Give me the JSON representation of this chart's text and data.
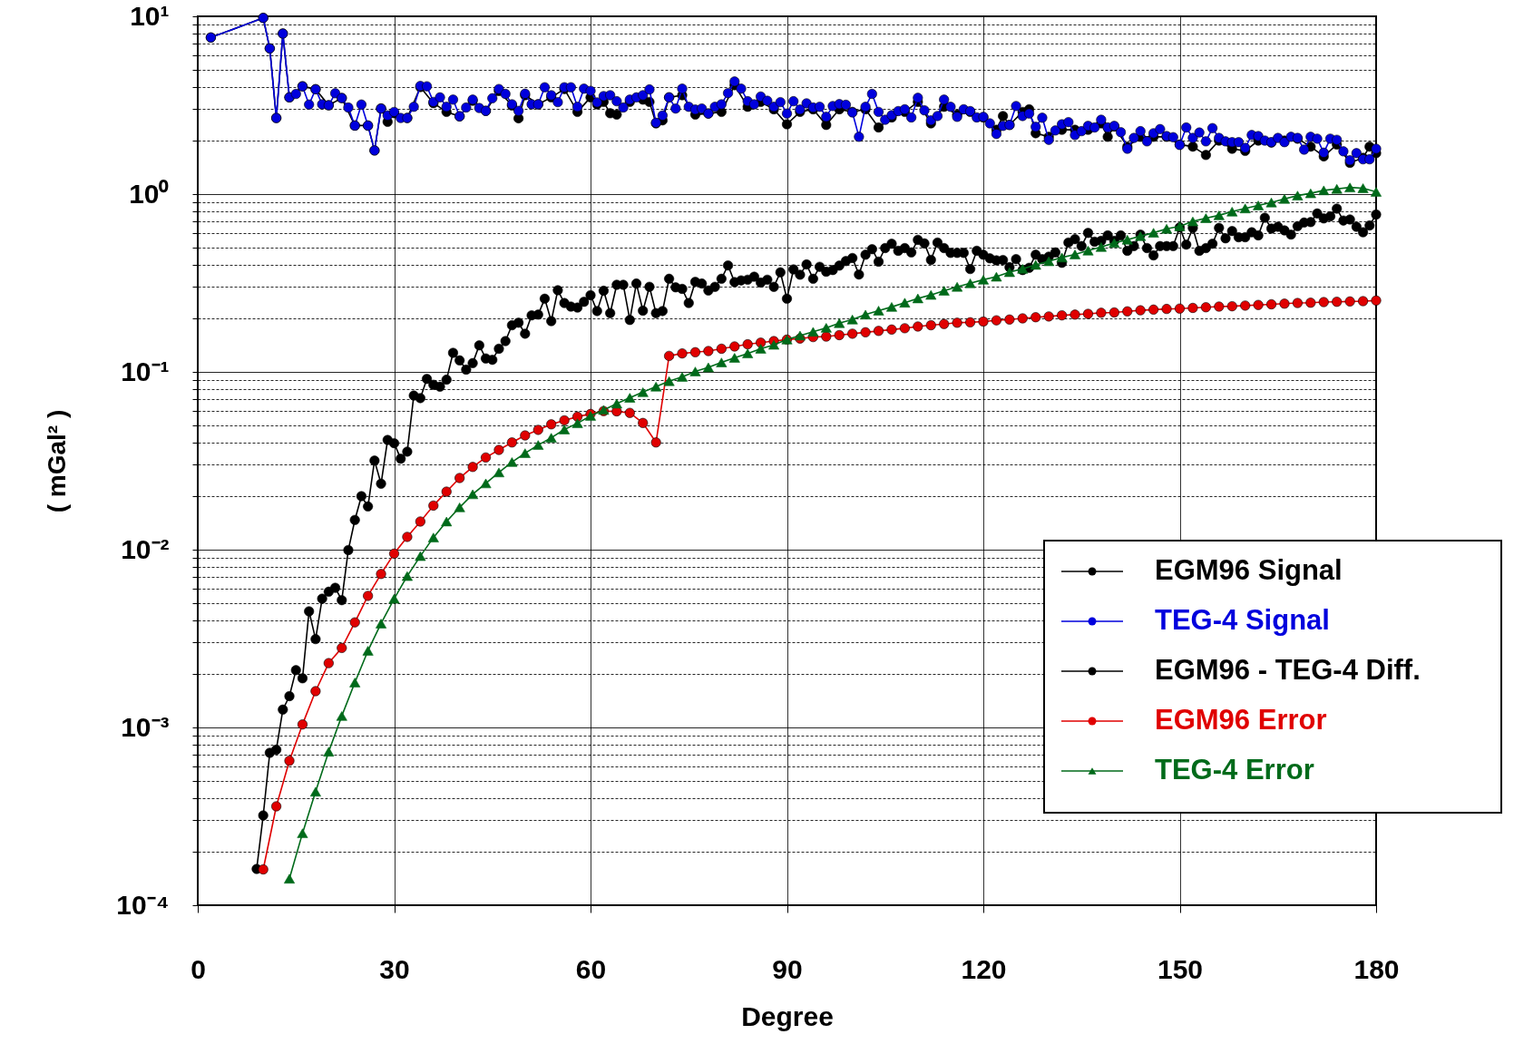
{
  "chart_data": {
    "type": "line",
    "xlabel": "Degree",
    "ylabel": "( mGal² )",
    "xlim": [
      0,
      180
    ],
    "xticks": [
      0,
      30,
      60,
      90,
      120,
      150,
      180
    ],
    "ylim": [
      0.0001,
      10
    ],
    "log": "y",
    "grid": true,
    "legend": "bottom right",
    "yticks": [
      {
        "value": 0.0001,
        "label": "10⁻⁴"
      },
      {
        "value": 0.0002,
        "label": null
      },
      {
        "value": 0.0003,
        "label": null
      },
      {
        "value": 0.0004,
        "label": null
      },
      {
        "value": 0.0005,
        "label": null
      },
      {
        "value": 0.0006,
        "label": null
      },
      {
        "value": 0.0007,
        "label": null
      },
      {
        "value": 0.0008,
        "label": null
      },
      {
        "value": 0.0009,
        "label": null
      },
      {
        "value": 0.001,
        "label": "10⁻³"
      },
      {
        "value": 0.002,
        "label": null
      },
      {
        "value": 0.003,
        "label": null
      },
      {
        "value": 0.004,
        "label": null
      },
      {
        "value": 0.005,
        "label": null
      },
      {
        "value": 0.006,
        "label": null
      },
      {
        "value": 0.007,
        "label": null
      },
      {
        "value": 0.008,
        "label": null
      },
      {
        "value": 0.009,
        "label": null
      },
      {
        "value": 0.01,
        "label": "10⁻²"
      },
      {
        "value": 0.02,
        "label": null
      },
      {
        "value": 0.03,
        "label": null
      },
      {
        "value": 0.04,
        "label": null
      },
      {
        "value": 0.05,
        "label": null
      },
      {
        "value": 0.06,
        "label": null
      },
      {
        "value": 0.07,
        "label": null
      },
      {
        "value": 0.08,
        "label": null
      },
      {
        "value": 0.09,
        "label": null
      },
      {
        "value": 0.1,
        "label": "10⁻¹"
      },
      {
        "value": 0.2,
        "label": null
      },
      {
        "value": 0.3,
        "label": null
      },
      {
        "value": 0.4,
        "label": null
      },
      {
        "value": 0.5,
        "label": null
      },
      {
        "value": 0.6,
        "label": null
      },
      {
        "value": 0.7,
        "label": null
      },
      {
        "value": 0.8,
        "label": null
      },
      {
        "value": 0.9,
        "label": null
      },
      {
        "value": 1,
        "label": "10⁰"
      },
      {
        "value": 2,
        "label": null
      },
      {
        "value": 3,
        "label": null
      },
      {
        "value": 4,
        "label": null
      },
      {
        "value": 5,
        "label": null
      },
      {
        "value": 6,
        "label": null
      },
      {
        "value": 7,
        "label": null
      },
      {
        "value": 8,
        "label": null
      },
      {
        "value": 9,
        "label": null
      },
      {
        "value": 10,
        "label": "10¹"
      }
    ],
    "series": [
      {
        "name": "EGM96 Signal",
        "color": "#000000",
        "marker": "circle",
        "x": [
          2,
          10,
          11,
          12,
          13,
          14,
          16,
          18,
          20,
          22,
          24,
          26,
          27,
          28,
          29,
          30,
          32,
          34,
          36,
          38,
          40,
          42,
          44,
          46,
          48,
          49,
          50,
          52,
          54,
          56,
          58,
          60,
          61,
          62,
          63,
          64,
          66,
          68,
          69,
          70,
          71,
          72,
          74,
          76,
          78,
          80,
          82,
          84,
          86,
          88,
          90,
          92,
          94,
          96,
          98,
          100,
          102,
          104,
          106,
          108,
          110,
          112,
          114,
          116,
          118,
          120,
          122,
          123,
          124,
          126,
          127,
          128,
          130,
          132,
          134,
          136,
          138,
          139,
          140,
          142,
          144,
          146,
          148,
          150,
          152,
          154,
          156,
          158,
          160,
          162,
          164,
          166,
          168,
          170,
          172,
          174,
          176,
          178,
          179,
          180
        ],
        "values": [
          7.6,
          9.8,
          6.6,
          2.68,
          8.0,
          3.5,
          4.04,
          3.89,
          3.16,
          3.47,
          2.43,
          2.43,
          1.76,
          3.03,
          2.55,
          2.85,
          2.68,
          4.0,
          3.25,
          2.9,
          2.74,
          3.35,
          2.94,
          3.8,
          3.15,
          2.67,
          3.6,
          3.2,
          3.5,
          3.9,
          2.9,
          3.5,
          3.2,
          3.3,
          2.85,
          2.8,
          3.3,
          3.4,
          3.3,
          2.5,
          2.6,
          3.5,
          3.6,
          2.8,
          2.84,
          2.9,
          4.1,
          3.1,
          3.3,
          3.0,
          2.47,
          2.9,
          3.0,
          2.45,
          3.0,
          2.9,
          3.0,
          2.37,
          2.7,
          2.9,
          3.3,
          2.5,
          3.1,
          2.8,
          2.9,
          2.7,
          2.3,
          2.75,
          2.45,
          2.9,
          3.0,
          2.2,
          2.1,
          2.3,
          2.3,
          2.3,
          2.5,
          2.1,
          2.4,
          1.85,
          2.1,
          2.1,
          2.1,
          1.9,
          1.85,
          1.66,
          2.0,
          1.8,
          1.75,
          2.0,
          1.95,
          2.0,
          2.05,
          1.85,
          1.63,
          1.9,
          1.5,
          1.6,
          1.85,
          1.7
        ]
      },
      {
        "name": "TEG-4 Signal",
        "color": "#0000dd",
        "marker": "circle",
        "x": [
          2,
          10,
          11,
          12,
          13,
          14,
          15,
          16,
          17,
          18,
          19,
          20,
          21,
          22,
          23,
          24,
          25,
          26,
          27,
          28,
          29,
          30,
          31,
          32,
          33,
          34,
          35,
          36,
          37,
          38,
          39,
          40,
          41,
          42,
          43,
          44,
          45,
          46,
          47,
          48,
          49,
          50,
          51,
          52,
          53,
          54,
          55,
          56,
          57,
          58,
          59,
          60,
          61,
          62,
          63,
          64,
          65,
          66,
          67,
          68,
          69,
          70,
          71,
          72,
          73,
          74,
          75,
          76,
          77,
          78,
          79,
          80,
          81,
          82,
          83,
          84,
          85,
          86,
          87,
          88,
          89,
          90,
          91,
          92,
          93,
          94,
          95,
          96,
          97,
          98,
          99,
          100,
          101,
          102,
          103,
          104,
          105,
          106,
          107,
          108,
          109,
          110,
          111,
          112,
          113,
          114,
          115,
          116,
          117,
          118,
          119,
          120,
          121,
          122,
          123,
          124,
          125,
          126,
          127,
          128,
          129,
          130,
          131,
          132,
          133,
          134,
          135,
          136,
          137,
          138,
          139,
          140,
          141,
          142,
          143,
          144,
          145,
          146,
          147,
          148,
          149,
          150,
          151,
          152,
          153,
          154,
          155,
          156,
          157,
          158,
          159,
          160,
          161,
          162,
          163,
          164,
          165,
          166,
          167,
          168,
          169,
          170,
          171,
          172,
          173,
          174,
          175,
          176,
          177,
          178,
          179,
          180
        ],
        "values": [
          7.6,
          9.8,
          6.6,
          2.68,
          8.0,
          3.5,
          3.66,
          4.04,
          3.19,
          3.89,
          3.2,
          3.16,
          3.69,
          3.47,
          3.07,
          2.43,
          3.19,
          2.43,
          1.76,
          3.03,
          2.77,
          2.9,
          2.68,
          2.68,
          3.1,
          4.06,
          4.04,
          3.3,
          3.5,
          3.1,
          3.4,
          2.74,
          3.07,
          3.4,
          3.05,
          2.94,
          3.46,
          3.9,
          3.66,
          3.2,
          2.94,
          3.67,
          3.2,
          3.2,
          3.99,
          3.6,
          3.29,
          3.99,
          3.99,
          3.1,
          3.92,
          3.81,
          3.28,
          3.56,
          3.6,
          3.33,
          3.07,
          3.4,
          3.5,
          3.6,
          3.88,
          2.52,
          2.77,
          3.5,
          3.03,
          3.92,
          3.1,
          2.99,
          3.03,
          2.84,
          3.1,
          3.2,
          3.7,
          4.3,
          3.92,
          3.33,
          3.2,
          3.54,
          3.35,
          3.1,
          3.29,
          2.84,
          3.33,
          2.99,
          3.24,
          3.07,
          3.1,
          2.72,
          3.13,
          3.21,
          3.18,
          2.88,
          2.1,
          3.1,
          3.66,
          2.9,
          2.62,
          2.78,
          2.93,
          3.0,
          2.7,
          3.48,
          2.96,
          2.6,
          2.75,
          3.4,
          3.1,
          2.72,
          3.0,
          2.93,
          2.7,
          2.72,
          2.5,
          2.18,
          2.42,
          2.45,
          3.13,
          2.75,
          2.84,
          2.39,
          2.69,
          2.02,
          2.28,
          2.47,
          2.54,
          2.15,
          2.26,
          2.42,
          2.37,
          2.62,
          2.37,
          2.42,
          2.23,
          1.8,
          2.07,
          2.26,
          1.98,
          2.2,
          2.32,
          2.12,
          2.09,
          1.89,
          2.37,
          2.07,
          2.22,
          1.98,
          2.35,
          2.07,
          1.98,
          1.96,
          1.96,
          1.82,
          2.15,
          2.12,
          2.0,
          1.96,
          2.07,
          1.96,
          2.1,
          2.07,
          1.78,
          2.1,
          2.05,
          1.71,
          2.05,
          2.02,
          1.74,
          1.55,
          1.7,
          1.57,
          1.57,
          1.8
        ]
      },
      {
        "name": "EGM96 - TEG-4 Diff.",
        "color": "#000000",
        "marker": "circle",
        "x": [
          9,
          10,
          11,
          12,
          13,
          14,
          15,
          16,
          17,
          18,
          19,
          20,
          21,
          22,
          23,
          24,
          25,
          26,
          27,
          28,
          29,
          30,
          31,
          32,
          33,
          34,
          35,
          36,
          37,
          38,
          39,
          40,
          41,
          42,
          43,
          44,
          45,
          46,
          47,
          48,
          49,
          50,
          51,
          52,
          53,
          54,
          55,
          56,
          57,
          58,
          59,
          60,
          61,
          62,
          63,
          64,
          65,
          66,
          67,
          68,
          69,
          70,
          71,
          72,
          73,
          74,
          75,
          76,
          77,
          78,
          79,
          80,
          81,
          82,
          83,
          84,
          85,
          86,
          87,
          88,
          89,
          90,
          91,
          92,
          93,
          94,
          95,
          96,
          97,
          98,
          99,
          100,
          101,
          102,
          103,
          104,
          105,
          106,
          107,
          108,
          109,
          110,
          111,
          112,
          113,
          114,
          115,
          116,
          117,
          118,
          119,
          120,
          121,
          122,
          123,
          124,
          125,
          126,
          127,
          128,
          129,
          130,
          131,
          132,
          133,
          134,
          135,
          136,
          137,
          138,
          139,
          140,
          141,
          142,
          143,
          144,
          145,
          146,
          147,
          148,
          149,
          150,
          151,
          152,
          153,
          154,
          155,
          156,
          157,
          158,
          159,
          160,
          161,
          162,
          163,
          164,
          165,
          166,
          167,
          168,
          169,
          170,
          171,
          172,
          173,
          174,
          175,
          176,
          177,
          178,
          179,
          180
        ],
        "values": [
          0.00016,
          0.00032,
          0.00072,
          0.00075,
          0.00126,
          0.0015,
          0.0021,
          0.00189,
          0.0045,
          0.00314,
          0.0053,
          0.0058,
          0.0061,
          0.0052,
          0.00995,
          0.0147,
          0.02,
          0.0175,
          0.0317,
          0.0235,
          0.0414,
          0.0397,
          0.0325,
          0.0356,
          0.0736,
          0.0712,
          0.0913,
          0.0846,
          0.0826,
          0.0904,
          0.128,
          0.116,
          0.103,
          0.112,
          0.141,
          0.119,
          0.117,
          0.135,
          0.149,
          0.183,
          0.189,
          0.164,
          0.208,
          0.21,
          0.258,
          0.193,
          0.288,
          0.244,
          0.233,
          0.23,
          0.248,
          0.27,
          0.22,
          0.286,
          0.214,
          0.309,
          0.309,
          0.196,
          0.314,
          0.221,
          0.301,
          0.214,
          0.22,
          0.334,
          0.299,
          0.293,
          0.244,
          0.321,
          0.314,
          0.287,
          0.301,
          0.334,
          0.397,
          0.32,
          0.327,
          0.33,
          0.343,
          0.318,
          0.33,
          0.301,
          0.363,
          0.258,
          0.377,
          0.352,
          0.402,
          0.334,
          0.39,
          0.366,
          0.374,
          0.396,
          0.42,
          0.437,
          0.353,
          0.456,
          0.49,
          0.417,
          0.497,
          0.526,
          0.48,
          0.497,
          0.47,
          0.553,
          0.528,
          0.427,
          0.534,
          0.497,
          0.467,
          0.467,
          0.467,
          0.379,
          0.48,
          0.456,
          0.435,
          0.424,
          0.426,
          0.388,
          0.431,
          0.374,
          0.385,
          0.456,
          0.431,
          0.445,
          0.47,
          0.411,
          0.534,
          0.558,
          0.51,
          0.605,
          0.54,
          0.546,
          0.586,
          0.546,
          0.586,
          0.48,
          0.51,
          0.592,
          0.497,
          0.452,
          0.51,
          0.51,
          0.51,
          0.65,
          0.52,
          0.645,
          0.48,
          0.497,
          0.526,
          0.645,
          0.564,
          0.62,
          0.572,
          0.572,
          0.61,
          0.586,
          0.736,
          0.64,
          0.655,
          0.625,
          0.592,
          0.66,
          0.692,
          0.696,
          0.778,
          0.73,
          0.75,
          0.828,
          0.71,
          0.72,
          0.655,
          0.61,
          0.666,
          0.768
        ]
      },
      {
        "name": "EGM96 Error",
        "color": "#e00000",
        "marker": "circle",
        "x": [
          10,
          12,
          14,
          16,
          18,
          20,
          22,
          24,
          26,
          28,
          30,
          32,
          34,
          36,
          38,
          40,
          42,
          44,
          46,
          48,
          50,
          52,
          54,
          56,
          58,
          60,
          62,
          64,
          66,
          68,
          70,
          72,
          74,
          76,
          78,
          80,
          82,
          84,
          86,
          88,
          90,
          92,
          94,
          96,
          98,
          100,
          102,
          104,
          106,
          108,
          110,
          112,
          114,
          116,
          118,
          120,
          122,
          124,
          126,
          128,
          130,
          132,
          134,
          136,
          138,
          140,
          142,
          144,
          146,
          148,
          150,
          152,
          154,
          156,
          158,
          160,
          162,
          164,
          166,
          168,
          170,
          172,
          174,
          176,
          178,
          180
        ],
        "values": [
          0.000159,
          0.00036,
          0.00065,
          0.00104,
          0.0016,
          0.0023,
          0.0028,
          0.0039,
          0.0055,
          0.0073,
          0.0095,
          0.0118,
          0.0144,
          0.0177,
          0.0212,
          0.0253,
          0.0292,
          0.033,
          0.0364,
          0.0401,
          0.0439,
          0.0472,
          0.0507,
          0.0534,
          0.056,
          0.058,
          0.0602,
          0.06,
          0.0588,
          0.0516,
          0.0401,
          0.123,
          0.127,
          0.129,
          0.131,
          0.135,
          0.139,
          0.143,
          0.146,
          0.149,
          0.152,
          0.154,
          0.157,
          0.158,
          0.161,
          0.164,
          0.167,
          0.17,
          0.173,
          0.176,
          0.18,
          0.183,
          0.186,
          0.189,
          0.19,
          0.192,
          0.195,
          0.197,
          0.2,
          0.203,
          0.205,
          0.208,
          0.21,
          0.212,
          0.215,
          0.216,
          0.219,
          0.222,
          0.224,
          0.226,
          0.227,
          0.229,
          0.231,
          0.233,
          0.234,
          0.236,
          0.238,
          0.24,
          0.242,
          0.244,
          0.245,
          0.247,
          0.248,
          0.249,
          0.25,
          0.252
        ]
      },
      {
        "name": "TEG-4 Error",
        "color": "#006a1a",
        "marker": "triangle",
        "x": [
          14,
          16,
          18,
          20,
          22,
          24,
          26,
          28,
          30,
          32,
          34,
          36,
          38,
          40,
          42,
          44,
          46,
          48,
          50,
          52,
          54,
          56,
          58,
          60,
          62,
          64,
          66,
          68,
          70,
          72,
          74,
          76,
          78,
          80,
          82,
          84,
          86,
          88,
          90,
          92,
          94,
          96,
          98,
          100,
          102,
          104,
          106,
          108,
          110,
          112,
          114,
          116,
          118,
          120,
          122,
          124,
          126,
          128,
          130,
          132,
          134,
          136,
          138,
          140,
          142,
          144,
          146,
          148,
          150,
          152,
          154,
          156,
          158,
          160,
          162,
          164,
          166,
          168,
          170,
          172,
          174,
          176,
          178,
          180
        ],
        "values": [
          0.000141,
          0.000254,
          0.000435,
          0.00073,
          0.00116,
          0.00179,
          0.0027,
          0.00384,
          0.0053,
          0.0071,
          0.0092,
          0.0117,
          0.0144,
          0.0173,
          0.0205,
          0.0236,
          0.0272,
          0.0311,
          0.0349,
          0.0388,
          0.0426,
          0.0474,
          0.0514,
          0.0566,
          0.0611,
          0.0663,
          0.0715,
          0.0769,
          0.0826,
          0.0887,
          0.0938,
          0.1005,
          0.106,
          0.113,
          0.12,
          0.127,
          0.135,
          0.142,
          0.152,
          0.16,
          0.168,
          0.177,
          0.188,
          0.197,
          0.21,
          0.221,
          0.232,
          0.245,
          0.259,
          0.271,
          0.286,
          0.301,
          0.315,
          0.33,
          0.343,
          0.364,
          0.38,
          0.4,
          0.419,
          0.44,
          0.458,
          0.481,
          0.504,
          0.531,
          0.554,
          0.58,
          0.606,
          0.638,
          0.659,
          0.702,
          0.732,
          0.76,
          0.797,
          0.831,
          0.864,
          0.897,
          0.94,
          0.981,
          1.01,
          1.05,
          1.07,
          1.09,
          1.08,
          1.03
        ]
      }
    ]
  }
}
